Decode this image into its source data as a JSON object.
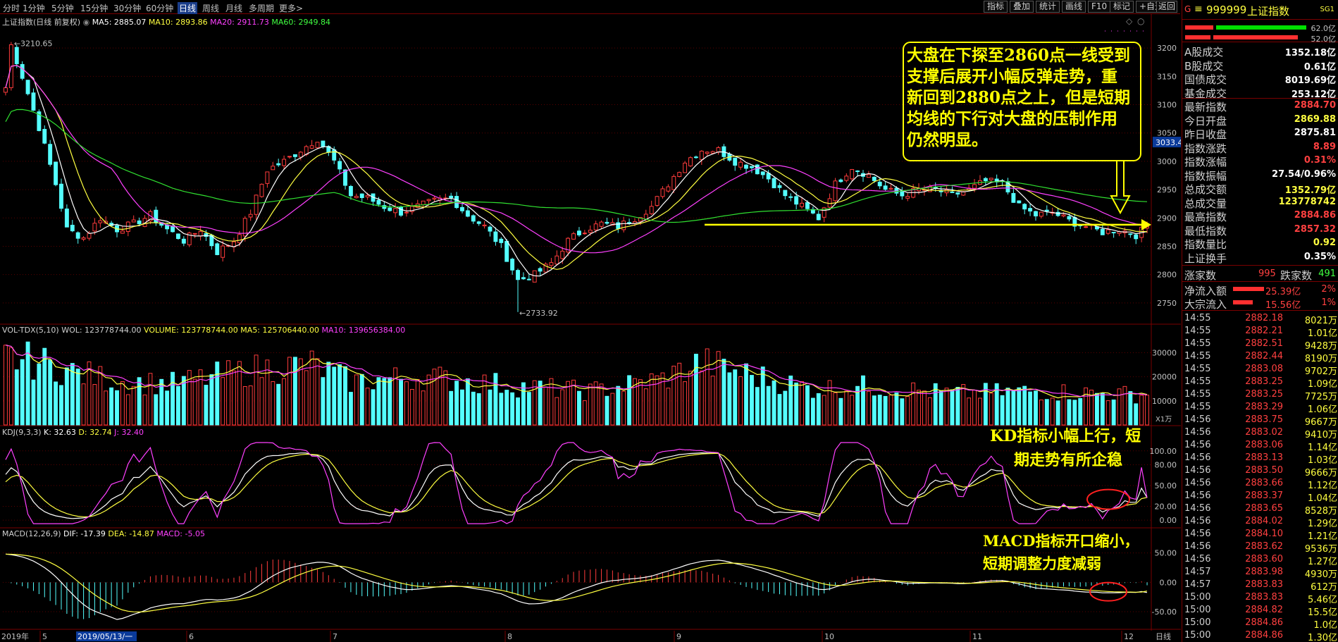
{
  "toolbar": {
    "periods": [
      "分时",
      "1分钟",
      "5分钟",
      "15分钟",
      "30分钟",
      "60分钟",
      "日线",
      "周线",
      "月线",
      "多周期",
      "更多>"
    ],
    "active_period": "日线",
    "buttons": [
      "指标",
      "叠加",
      "统计",
      "画线",
      "F10",
      "标记",
      "+自选",
      "返回"
    ]
  },
  "main_panel": {
    "title": "上证指数(日线 前复权)",
    "ma5": "MA5: 2885.07",
    "ma10": "MA10: 2893.86",
    "ma20": "MA20: 2911.73",
    "ma60": "MA60: 2949.84",
    "high_label": "3210.65",
    "low_label": "2733.92",
    "price_tag": "3033.4",
    "axis_ticks": [
      "3200",
      "3150",
      "3100",
      "3050",
      "3000",
      "2950",
      "2900",
      "2850",
      "2800",
      "2750"
    ]
  },
  "vol_panel": {
    "title": "VOL-TDX(5,10)",
    "wol": "WOL: 123778744.00",
    "volume": "VOLUME: 123778744.00",
    "ma5": "MA5: 125706440.00",
    "ma10": "MA10: 139656384.00",
    "axis_ticks": [
      "30000",
      "20000",
      "10000"
    ],
    "unit": "X1万"
  },
  "kdj_panel": {
    "title": "KDJ(9,3,3)",
    "k": "K: 32.63",
    "d": "D: 32.74",
    "j": "J: 32.40",
    "axis_ticks": [
      "100.00",
      "80.00",
      "50.00",
      "20.00",
      "0.00"
    ]
  },
  "macd_panel": {
    "title": "MACD(12,26,9)",
    "dif": "DIF: -17.39",
    "dea": "DEA: -14.87",
    "macd": "MACD: -5.05",
    "axis_ticks": [
      "50.00",
      "0.00",
      "-50.00"
    ]
  },
  "date_axis": {
    "labels": [
      "2019年",
      "5",
      "2019/05/13/一",
      "6",
      "7",
      "8",
      "9",
      "10",
      "11",
      "12"
    ],
    "period_label": "日线"
  },
  "annotations": {
    "main": [
      "大盘在下探至2860点一线受到",
      "支撑后展开小幅反弹走势，重",
      "新回到2880点之上，但是短期",
      "均线的下行对大盘的压制作用",
      "仍然明显。"
    ],
    "kdj": [
      "KD指标小幅上行，短",
      "期走势有所企稳"
    ],
    "macd": [
      "MACD指标开口缩小，",
      "短期调整力度减弱"
    ]
  },
  "sidebar": {
    "code": "999999",
    "name": "上证指数",
    "flag_left": "G",
    "flag_right": "SG1",
    "bar1": "62.0亿",
    "bar2": "52.0亿",
    "stats": [
      {
        "label": "A股成交",
        "value": "1352.18亿",
        "color": "#ffffff"
      },
      {
        "label": "B股成交",
        "value": "0.61亿",
        "color": "#ffffff"
      },
      {
        "label": "国债成交",
        "value": "8019.69亿",
        "color": "#ffffff"
      },
      {
        "label": "基金成交",
        "value": "253.12亿",
        "color": "#ffffff"
      },
      {
        "label": "最新指数",
        "value": "2884.70",
        "color": "#ff4040"
      },
      {
        "label": "今日开盘",
        "value": "2869.88",
        "color": "#ffff40"
      },
      {
        "label": "昨日收盘",
        "value": "2875.81",
        "color": "#ffffff"
      },
      {
        "label": "指数涨跌",
        "value": "8.89",
        "color": "#ff4040"
      },
      {
        "label": "指数涨幅",
        "value": "0.31%",
        "color": "#ff4040"
      },
      {
        "label": "指数振幅",
        "value": "27.54/0.96%",
        "color": "#ffffff"
      },
      {
        "label": "总成交额",
        "value": "1352.79亿",
        "color": "#ffff40"
      },
      {
        "label": "总成交量",
        "value": "123778742",
        "color": "#ffff40"
      },
      {
        "label": "最高指数",
        "value": "2884.86",
        "color": "#ff4040"
      },
      {
        "label": "最低指数",
        "value": "2857.32",
        "color": "#ff4040"
      },
      {
        "label": "指数量比",
        "value": "0.92",
        "color": "#ffff40"
      },
      {
        "label": "上证换手",
        "value": "0.35%",
        "color": "#ffffff"
      }
    ],
    "up_label": "涨家数",
    "up_value": "995",
    "down_label": "跌家数",
    "down_value": "491",
    "net_inflow_label": "净流入额",
    "net_inflow_value": "25.39亿",
    "net_inflow_pct": "2%",
    "block_inflow_label": "大宗流入",
    "block_inflow_value": "15.56亿",
    "block_inflow_pct": "1%",
    "ticks": [
      {
        "t": "14:55",
        "p": "2882.18",
        "v": "8021万"
      },
      {
        "t": "14:55",
        "p": "2882.21",
        "v": "1.01亿"
      },
      {
        "t": "14:55",
        "p": "2882.51",
        "v": "9428万"
      },
      {
        "t": "14:55",
        "p": "2882.44",
        "v": "8190万"
      },
      {
        "t": "14:55",
        "p": "2883.08",
        "v": "9702万"
      },
      {
        "t": "14:55",
        "p": "2883.25",
        "v": "1.09亿"
      },
      {
        "t": "14:55",
        "p": "2883.25",
        "v": "7725万"
      },
      {
        "t": "14:55",
        "p": "2883.29",
        "v": "1.06亿"
      },
      {
        "t": "14:56",
        "p": "2883.75",
        "v": "9667万"
      },
      {
        "t": "14:56",
        "p": "2883.02",
        "v": "9410万"
      },
      {
        "t": "14:56",
        "p": "2883.06",
        "v": "1.14亿"
      },
      {
        "t": "14:56",
        "p": "2883.13",
        "v": "1.03亿"
      },
      {
        "t": "14:56",
        "p": "2883.50",
        "v": "9666万"
      },
      {
        "t": "14:56",
        "p": "2883.66",
        "v": "1.12亿"
      },
      {
        "t": "14:56",
        "p": "2883.37",
        "v": "1.04亿"
      },
      {
        "t": "14:56",
        "p": "2883.65",
        "v": "8528万"
      },
      {
        "t": "14:56",
        "p": "2884.02",
        "v": "1.29亿"
      },
      {
        "t": "14:56",
        "p": "2884.10",
        "v": "1.21亿"
      },
      {
        "t": "14:56",
        "p": "2883.62",
        "v": "9536万"
      },
      {
        "t": "14:56",
        "p": "2883.60",
        "v": "1.27亿"
      },
      {
        "t": "14:57",
        "p": "2883.98",
        "v": "4930万"
      },
      {
        "t": "14:57",
        "p": "2883.83",
        "v": "612万"
      },
      {
        "t": "15:00",
        "p": "2883.83",
        "v": "5.46亿"
      },
      {
        "t": "15:00",
        "p": "2884.82",
        "v": "15.5亿"
      },
      {
        "t": "15:00",
        "p": "2884.86",
        "v": "1.0亿"
      },
      {
        "t": "15:00",
        "p": "2884.86",
        "v": "1.30亿"
      }
    ]
  },
  "chart_data": {
    "type": "candlestick",
    "title": "上证指数(日线 前复权)",
    "period": "日线",
    "price_axis": {
      "ticks": [
        3200,
        3150,
        3100,
        3050,
        3000,
        2950,
        2900,
        2850,
        2800,
        2750
      ],
      "ylim": [
        2715,
        3235
      ]
    },
    "ma_latest": {
      "MA5": 2885.07,
      "MA10": 2893.86,
      "MA20": 2911.73,
      "MA60": 2949.84
    },
    "highest": 3210.65,
    "lowest": 2733.92,
    "support_level": 2888,
    "month_labels": [
      "5",
      "6",
      "7",
      "8",
      "9",
      "10",
      "11",
      "12"
    ],
    "anchors": [
      [
        0,
        3130
      ],
      [
        1,
        3205
      ],
      [
        3,
        3150
      ],
      [
        6,
        3060
      ],
      [
        9,
        2960
      ],
      [
        11,
        2880
      ],
      [
        14,
        2865
      ],
      [
        17,
        2900
      ],
      [
        20,
        2880
      ],
      [
        23,
        2890
      ],
      [
        26,
        2905
      ],
      [
        29,
        2880
      ],
      [
        32,
        2860
      ],
      [
        35,
        2880
      ],
      [
        38,
        2840
      ],
      [
        41,
        2860
      ],
      [
        44,
        2910
      ],
      [
        47,
        2985
      ],
      [
        50,
        3000
      ],
      [
        53,
        3020
      ],
      [
        56,
        3040
      ],
      [
        59,
        3000
      ],
      [
        62,
        2940
      ],
      [
        65,
        2935
      ],
      [
        68,
        2920
      ],
      [
        71,
        2910
      ],
      [
        74,
        2920
      ],
      [
        77,
        2930
      ],
      [
        80,
        2935
      ],
      [
        83,
        2905
      ],
      [
        86,
        2885
      ],
      [
        89,
        2850
      ],
      [
        92,
        2790
      ],
      [
        95,
        2800
      ],
      [
        98,
        2820
      ],
      [
        101,
        2860
      ],
      [
        104,
        2880
      ],
      [
        107,
        2890
      ],
      [
        110,
        2885
      ],
      [
        113,
        2900
      ],
      [
        116,
        2920
      ],
      [
        119,
        2960
      ],
      [
        122,
        3000
      ],
      [
        125,
        3020
      ],
      [
        128,
        3020
      ],
      [
        131,
        3000
      ],
      [
        134,
        2990
      ],
      [
        137,
        2970
      ],
      [
        140,
        2940
      ],
      [
        143,
        2920
      ],
      [
        146,
        2900
      ],
      [
        149,
        2960
      ],
      [
        152,
        2990
      ],
      [
        155,
        2975
      ],
      [
        158,
        2950
      ],
      [
        161,
        2940
      ],
      [
        164,
        2950
      ],
      [
        167,
        2950
      ],
      [
        170,
        2940
      ],
      [
        173,
        2950
      ],
      [
        176,
        2965
      ],
      [
        179,
        2960
      ],
      [
        182,
        2920
      ],
      [
        185,
        2905
      ],
      [
        188,
        2910
      ],
      [
        191,
        2895
      ],
      [
        194,
        2885
      ],
      [
        197,
        2875
      ],
      [
        200,
        2880
      ],
      [
        203,
        2870
      ],
      [
        205,
        2884.7
      ]
    ],
    "volume_axis": {
      "ticks": [
        30000,
        20000,
        10000
      ],
      "unit": "X1万",
      "ylim": [
        0,
        36000
      ]
    },
    "volume_anchors": [
      [
        0,
        28000
      ],
      [
        6,
        26000
      ],
      [
        12,
        22000
      ],
      [
        20,
        18000
      ],
      [
        30,
        17000
      ],
      [
        45,
        23000
      ],
      [
        55,
        25000
      ],
      [
        62,
        18000
      ],
      [
        75,
        20000
      ],
      [
        92,
        16000
      ],
      [
        105,
        14000
      ],
      [
        118,
        19000
      ],
      [
        125,
        26000
      ],
      [
        135,
        20000
      ],
      [
        145,
        15000
      ],
      [
        155,
        16000
      ],
      [
        170,
        13000
      ],
      [
        185,
        14000
      ],
      [
        205,
        12378
      ]
    ],
    "kdj": {
      "K": 32.63,
      "D": 32.74,
      "J": 32.4,
      "ticks": [
        100,
        80,
        50,
        20,
        0
      ]
    },
    "macd": {
      "DIF": -17.39,
      "DEA": -14.87,
      "MACD": -5.05,
      "ticks": [
        50,
        0,
        -50
      ]
    },
    "annotation_lines": [
      {
        "type": "horizontal",
        "value": 2888,
        "color": "#ffff00"
      }
    ]
  }
}
